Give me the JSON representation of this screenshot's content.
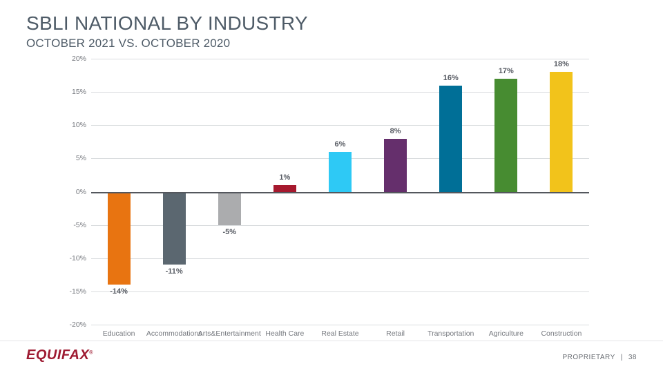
{
  "header": {
    "title": "SBLI NATIONAL BY INDUSTRY",
    "subtitle": "OCTOBER 2021 VS. OCTOBER 2020"
  },
  "chart_data": {
    "type": "bar",
    "title": "SBLI National by Industry, October 2021 vs. October 2020",
    "categories": [
      "Education",
      "Accommodations",
      "Arts&Entertainment",
      "Health Care",
      "Real Estate",
      "Retail",
      "Transportation",
      "Agriculture",
      "Construction"
    ],
    "values": [
      -14,
      -11,
      -5,
      1,
      6,
      8,
      16,
      17,
      18
    ],
    "value_labels": [
      "-14%",
      "-11%",
      "-5%",
      "1%",
      "6%",
      "8%",
      "16%",
      "17%",
      "18%"
    ],
    "bar_colors": [
      "#e87411",
      "#5b6770",
      "#abacae",
      "#a6192e",
      "#2ec9f5",
      "#652f6c",
      "#006f97",
      "#478c31",
      "#f2c31b"
    ],
    "xlabel": "",
    "ylabel": "",
    "ylim": [
      -20,
      20
    ],
    "ytick_step": 5,
    "ytick_labels": [
      "20%",
      "15%",
      "10%",
      "5%",
      "0%",
      "-5%",
      "-10%",
      "-15%",
      "-20%"
    ],
    "grid": true,
    "legend": "none"
  },
  "footer": {
    "brand": "EQUIFAX",
    "registered_mark": "®",
    "proprietary_label": "PROPRIETARY",
    "separator": "|",
    "page_number": "38"
  },
  "colors": {
    "title_text": "#4e5b67",
    "axis_text": "#75787e",
    "value_label_text": "#565a62",
    "gridline": "#d9dcde",
    "zero_line": "#54575d",
    "brand_red": "#9e1b32",
    "background": "#ffffff"
  }
}
